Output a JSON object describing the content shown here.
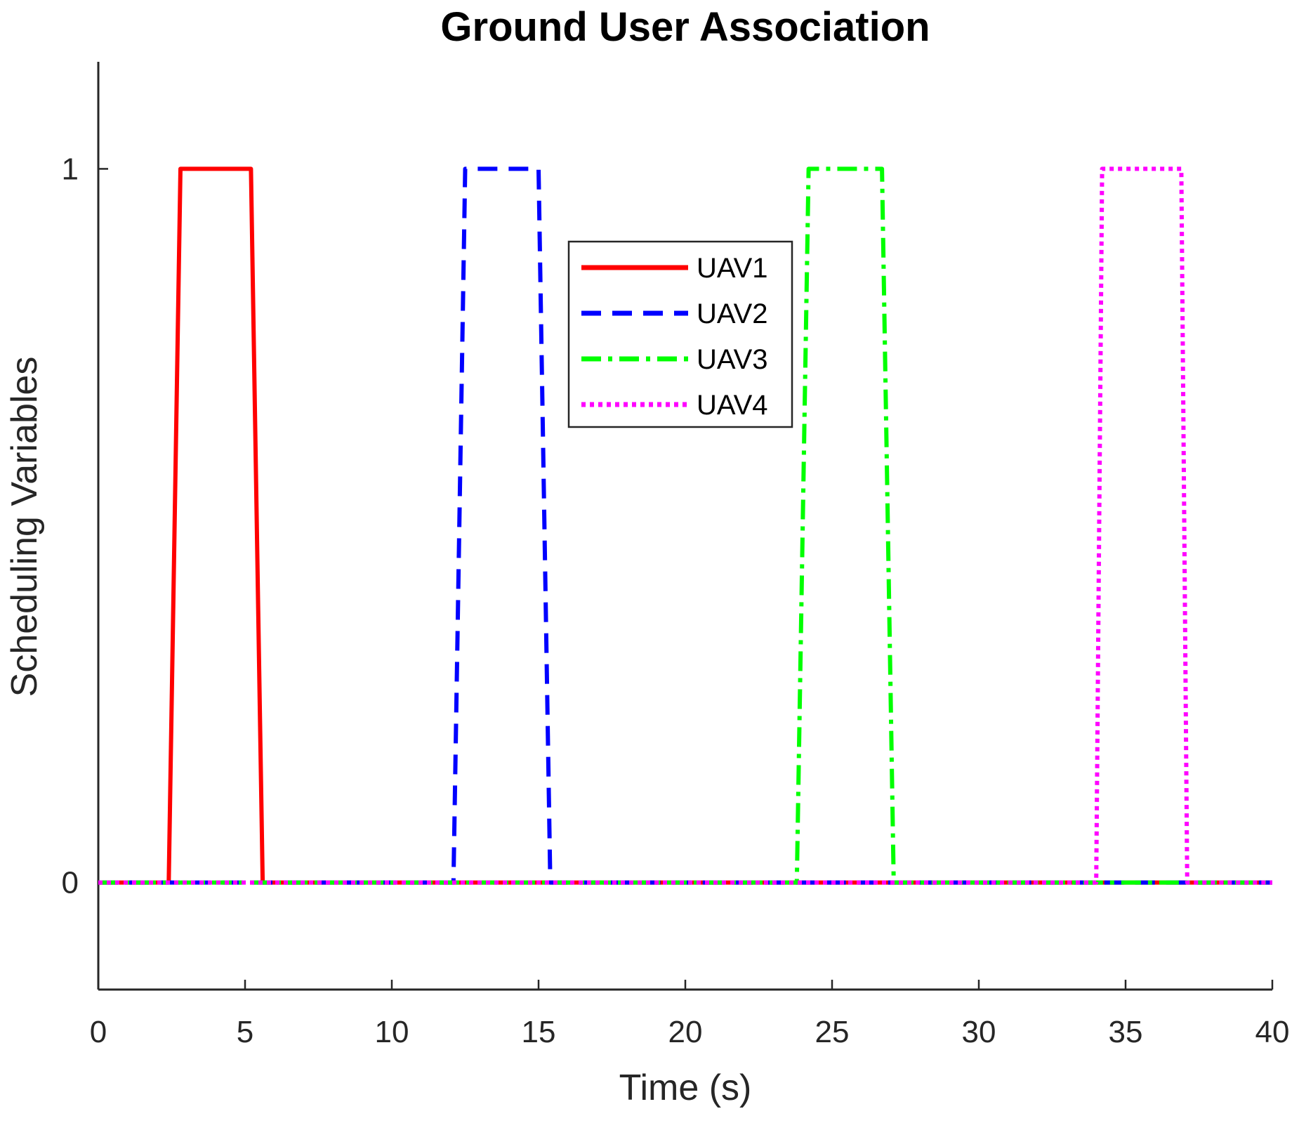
{
  "chart_data": {
    "type": "line",
    "title": "Ground User Association",
    "xlabel": "Time (s)",
    "ylabel": "Scheduling Variables",
    "xlim": [
      0,
      40
    ],
    "ylim": [
      -0.15,
      1.15
    ],
    "xticks": [
      0,
      5,
      10,
      15,
      20,
      25,
      30,
      35,
      40
    ],
    "yticks": [
      0,
      1
    ],
    "grid": false,
    "legend_position": "top-center",
    "series": [
      {
        "name": "UAV1",
        "color": "#ff0000",
        "style": "solid",
        "x": [
          0,
          2.4,
          2.8,
          5.2,
          5.6,
          40
        ],
        "y": [
          0,
          0,
          1,
          1,
          0,
          0
        ]
      },
      {
        "name": "UAV2",
        "color": "#0000ff",
        "style": "dashed",
        "x": [
          0,
          12.1,
          12.5,
          15.0,
          15.4,
          40
        ],
        "y": [
          0,
          0,
          1,
          1,
          0,
          0
        ]
      },
      {
        "name": "UAV3",
        "color": "#00ff00",
        "style": "dashdot",
        "x": [
          0,
          23.8,
          24.2,
          26.7,
          27.1,
          40
        ],
        "y": [
          0,
          0,
          1,
          1,
          0,
          0
        ]
      },
      {
        "name": "UAV4",
        "color": "#ff00ff",
        "style": "dotted",
        "x": [
          0,
          34.0,
          34.2,
          36.9,
          37.1,
          40
        ],
        "y": [
          0,
          0,
          1,
          1,
          0,
          0
        ]
      }
    ]
  }
}
